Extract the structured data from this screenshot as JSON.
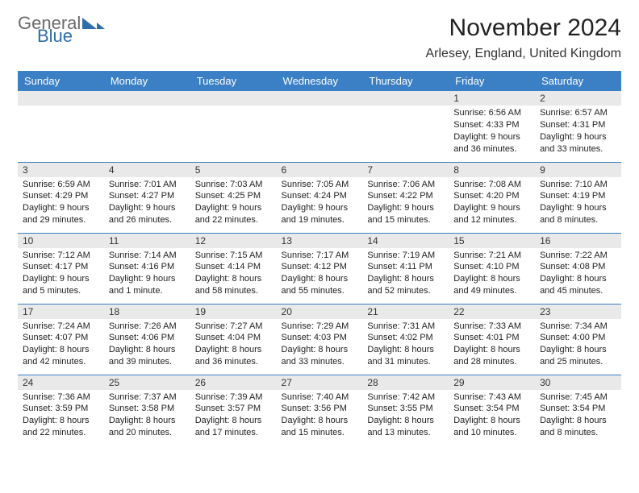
{
  "brand": {
    "word1": "General",
    "word2": "Blue",
    "color_gray": "#6b6b6b",
    "color_blue": "#2f6fa8"
  },
  "title": "November 2024",
  "location": "Arlesey, England, United Kingdom",
  "header_bg": "#3b7fc4",
  "daynum_bg": "#e9e9e9",
  "day_headers": [
    "Sunday",
    "Monday",
    "Tuesday",
    "Wednesday",
    "Thursday",
    "Friday",
    "Saturday"
  ],
  "weeks": [
    [
      {
        "n": "",
        "sr": "",
        "ss": "",
        "dl": ""
      },
      {
        "n": "",
        "sr": "",
        "ss": "",
        "dl": ""
      },
      {
        "n": "",
        "sr": "",
        "ss": "",
        "dl": ""
      },
      {
        "n": "",
        "sr": "",
        "ss": "",
        "dl": ""
      },
      {
        "n": "",
        "sr": "",
        "ss": "",
        "dl": ""
      },
      {
        "n": "1",
        "sr": "Sunrise: 6:56 AM",
        "ss": "Sunset: 4:33 PM",
        "dl": "Daylight: 9 hours and 36 minutes."
      },
      {
        "n": "2",
        "sr": "Sunrise: 6:57 AM",
        "ss": "Sunset: 4:31 PM",
        "dl": "Daylight: 9 hours and 33 minutes."
      }
    ],
    [
      {
        "n": "3",
        "sr": "Sunrise: 6:59 AM",
        "ss": "Sunset: 4:29 PM",
        "dl": "Daylight: 9 hours and 29 minutes."
      },
      {
        "n": "4",
        "sr": "Sunrise: 7:01 AM",
        "ss": "Sunset: 4:27 PM",
        "dl": "Daylight: 9 hours and 26 minutes."
      },
      {
        "n": "5",
        "sr": "Sunrise: 7:03 AM",
        "ss": "Sunset: 4:25 PM",
        "dl": "Daylight: 9 hours and 22 minutes."
      },
      {
        "n": "6",
        "sr": "Sunrise: 7:05 AM",
        "ss": "Sunset: 4:24 PM",
        "dl": "Daylight: 9 hours and 19 minutes."
      },
      {
        "n": "7",
        "sr": "Sunrise: 7:06 AM",
        "ss": "Sunset: 4:22 PM",
        "dl": "Daylight: 9 hours and 15 minutes."
      },
      {
        "n": "8",
        "sr": "Sunrise: 7:08 AM",
        "ss": "Sunset: 4:20 PM",
        "dl": "Daylight: 9 hours and 12 minutes."
      },
      {
        "n": "9",
        "sr": "Sunrise: 7:10 AM",
        "ss": "Sunset: 4:19 PM",
        "dl": "Daylight: 9 hours and 8 minutes."
      }
    ],
    [
      {
        "n": "10",
        "sr": "Sunrise: 7:12 AM",
        "ss": "Sunset: 4:17 PM",
        "dl": "Daylight: 9 hours and 5 minutes."
      },
      {
        "n": "11",
        "sr": "Sunrise: 7:14 AM",
        "ss": "Sunset: 4:16 PM",
        "dl": "Daylight: 9 hours and 1 minute."
      },
      {
        "n": "12",
        "sr": "Sunrise: 7:15 AM",
        "ss": "Sunset: 4:14 PM",
        "dl": "Daylight: 8 hours and 58 minutes."
      },
      {
        "n": "13",
        "sr": "Sunrise: 7:17 AM",
        "ss": "Sunset: 4:12 PM",
        "dl": "Daylight: 8 hours and 55 minutes."
      },
      {
        "n": "14",
        "sr": "Sunrise: 7:19 AM",
        "ss": "Sunset: 4:11 PM",
        "dl": "Daylight: 8 hours and 52 minutes."
      },
      {
        "n": "15",
        "sr": "Sunrise: 7:21 AM",
        "ss": "Sunset: 4:10 PM",
        "dl": "Daylight: 8 hours and 49 minutes."
      },
      {
        "n": "16",
        "sr": "Sunrise: 7:22 AM",
        "ss": "Sunset: 4:08 PM",
        "dl": "Daylight: 8 hours and 45 minutes."
      }
    ],
    [
      {
        "n": "17",
        "sr": "Sunrise: 7:24 AM",
        "ss": "Sunset: 4:07 PM",
        "dl": "Daylight: 8 hours and 42 minutes."
      },
      {
        "n": "18",
        "sr": "Sunrise: 7:26 AM",
        "ss": "Sunset: 4:06 PM",
        "dl": "Daylight: 8 hours and 39 minutes."
      },
      {
        "n": "19",
        "sr": "Sunrise: 7:27 AM",
        "ss": "Sunset: 4:04 PM",
        "dl": "Daylight: 8 hours and 36 minutes."
      },
      {
        "n": "20",
        "sr": "Sunrise: 7:29 AM",
        "ss": "Sunset: 4:03 PM",
        "dl": "Daylight: 8 hours and 33 minutes."
      },
      {
        "n": "21",
        "sr": "Sunrise: 7:31 AM",
        "ss": "Sunset: 4:02 PM",
        "dl": "Daylight: 8 hours and 31 minutes."
      },
      {
        "n": "22",
        "sr": "Sunrise: 7:33 AM",
        "ss": "Sunset: 4:01 PM",
        "dl": "Daylight: 8 hours and 28 minutes."
      },
      {
        "n": "23",
        "sr": "Sunrise: 7:34 AM",
        "ss": "Sunset: 4:00 PM",
        "dl": "Daylight: 8 hours and 25 minutes."
      }
    ],
    [
      {
        "n": "24",
        "sr": "Sunrise: 7:36 AM",
        "ss": "Sunset: 3:59 PM",
        "dl": "Daylight: 8 hours and 22 minutes."
      },
      {
        "n": "25",
        "sr": "Sunrise: 7:37 AM",
        "ss": "Sunset: 3:58 PM",
        "dl": "Daylight: 8 hours and 20 minutes."
      },
      {
        "n": "26",
        "sr": "Sunrise: 7:39 AM",
        "ss": "Sunset: 3:57 PM",
        "dl": "Daylight: 8 hours and 17 minutes."
      },
      {
        "n": "27",
        "sr": "Sunrise: 7:40 AM",
        "ss": "Sunset: 3:56 PM",
        "dl": "Daylight: 8 hours and 15 minutes."
      },
      {
        "n": "28",
        "sr": "Sunrise: 7:42 AM",
        "ss": "Sunset: 3:55 PM",
        "dl": "Daylight: 8 hours and 13 minutes."
      },
      {
        "n": "29",
        "sr": "Sunrise: 7:43 AM",
        "ss": "Sunset: 3:54 PM",
        "dl": "Daylight: 8 hours and 10 minutes."
      },
      {
        "n": "30",
        "sr": "Sunrise: 7:45 AM",
        "ss": "Sunset: 3:54 PM",
        "dl": "Daylight: 8 hours and 8 minutes."
      }
    ]
  ]
}
